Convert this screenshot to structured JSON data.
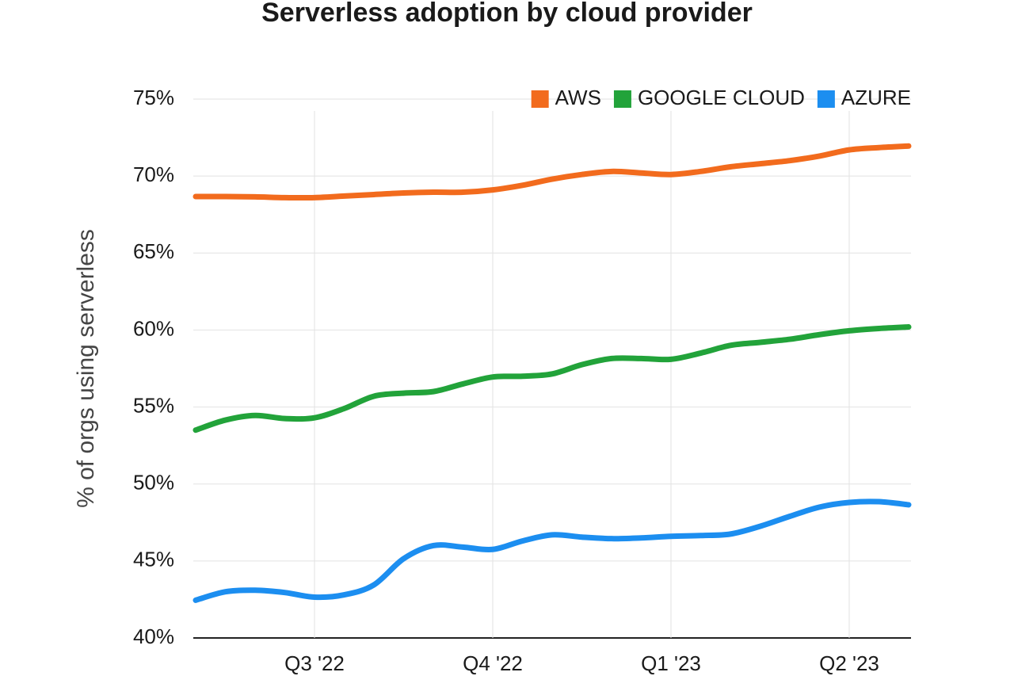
{
  "chart_data": {
    "type": "line",
    "title": "Serverless adoption by cloud provider",
    "y_label": "% of orgs using serverless",
    "categories": [
      null,
      null,
      null,
      null,
      "Q3 '22",
      null,
      null,
      null,
      null,
      null,
      "Q4 '22",
      null,
      null,
      null,
      null,
      null,
      "Q1 '23",
      null,
      null,
      null,
      null,
      null,
      "Q2 '23",
      null,
      null
    ],
    "series": [
      {
        "name": "AWS",
        "color": "#f26b1d",
        "values": [
          68.67,
          68.67,
          68.65,
          68.6,
          68.6,
          68.7,
          68.8,
          68.9,
          68.95,
          68.95,
          69.1,
          69.4,
          69.8,
          70.1,
          70.3,
          70.2,
          70.1,
          70.3,
          70.6,
          70.8,
          71.0,
          71.3,
          71.7,
          71.85,
          71.95
        ]
      },
      {
        "name": "GOOGLE CLOUD",
        "color": "#22a33a",
        "values": [
          53.5,
          54.15,
          54.45,
          54.25,
          54.3,
          54.9,
          55.7,
          55.9,
          56.0,
          56.5,
          56.95,
          57.0,
          57.15,
          57.75,
          58.15,
          58.15,
          58.1,
          58.5,
          59.0,
          59.2,
          59.4,
          59.7,
          59.95,
          60.1,
          60.2
        ]
      },
      {
        "name": "AZURE",
        "color": "#1c8ef0",
        "values": [
          42.45,
          43.0,
          43.1,
          42.95,
          42.65,
          42.8,
          43.45,
          45.15,
          46.0,
          45.9,
          45.75,
          46.3,
          46.7,
          46.55,
          46.45,
          46.5,
          46.6,
          46.65,
          46.75,
          47.25,
          47.9,
          48.5,
          48.8,
          48.85,
          48.65
        ]
      }
    ],
    "ylim": [
      40,
      75
    ],
    "yticks": [
      {
        "value": 40,
        "label": "40%"
      },
      {
        "value": 45,
        "label": "45%"
      },
      {
        "value": 50,
        "label": "50%"
      },
      {
        "value": 55,
        "label": "55%"
      },
      {
        "value": 60,
        "label": "60%"
      },
      {
        "value": 65,
        "label": "65%"
      },
      {
        "value": 70,
        "label": "70%"
      },
      {
        "value": 75,
        "label": "75%"
      }
    ],
    "grid": true,
    "legend": "top-right"
  }
}
